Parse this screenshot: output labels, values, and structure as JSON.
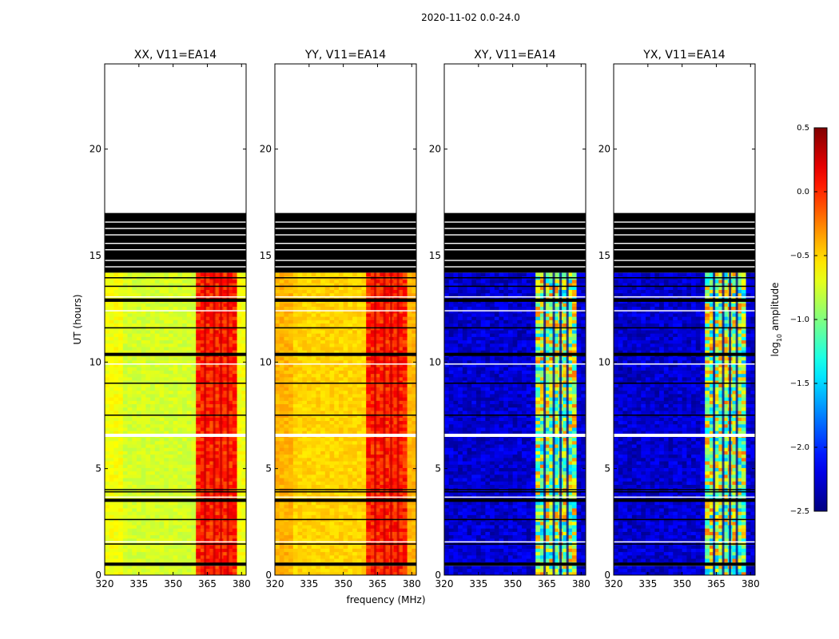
{
  "figure": {
    "suptitle": "2020-11-02 0.0-24.0"
  },
  "chart_data": {
    "type": "heatmap",
    "suptitle": "2020-11-02 0.0-24.0",
    "xlabel": "frequency (MHz)",
    "ylabel": "UT (hours)",
    "xlim": [
      320,
      382
    ],
    "ylim": [
      0,
      24
    ],
    "xticks": [
      320,
      335,
      350,
      365,
      380
    ],
    "yticks": [
      0,
      5,
      10,
      15,
      20
    ],
    "panels": [
      {
        "title": "XX, V11=EA14",
        "kind": "auto",
        "base_level": -0.75,
        "band_level": -0.05
      },
      {
        "title": "YY, V11=EA14",
        "kind": "auto",
        "base_level": -0.5,
        "band_level": -0.05
      },
      {
        "title": "XY, V11=EA14",
        "kind": "cross",
        "base_level": -2.3,
        "band_level": -1.2
      },
      {
        "title": "YX, V11=EA14",
        "kind": "cross",
        "base_level": -2.3,
        "band_level": -1.2
      }
    ],
    "rfi_band_mhz": [
      360,
      378
    ],
    "rfi_channel_lines_mhz": [
      364,
      368,
      371,
      374
    ],
    "data_end_ut": 14.2,
    "flagged_block_ut": [
      14.2,
      17.0
    ],
    "flagged_rows_ut": [
      0.45,
      0.55,
      1.45,
      1.55,
      2.6,
      3.55,
      3.65,
      3.9,
      4.0,
      6.6,
      7.5,
      9.0,
      9.9,
      10.4,
      11.6,
      12.4,
      12.85,
      12.95,
      13.05,
      13.55,
      13.95
    ],
    "colorbar": {
      "label": "log10 amplitude",
      "label_prefix": "log",
      "label_sub": "10",
      "label_suffix": " amplitude",
      "range": [
        -2.5,
        0.5
      ],
      "ticks": [
        "0.5",
        "0.0",
        "−0.5",
        "−1.0",
        "−1.5",
        "−2.0",
        "−2.5"
      ],
      "tick_values": [
        0.5,
        0.0,
        -0.5,
        -1.0,
        -1.5,
        -2.0,
        -2.5
      ],
      "colormap": "jet"
    }
  }
}
